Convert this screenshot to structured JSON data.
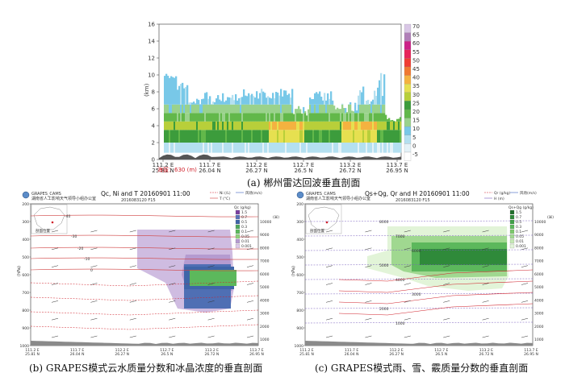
{
  "panel_a": {
    "caption": "(a) 郴州雷达回波垂直剖面",
    "y_unit": "(km)",
    "y_ticks": [
      "0",
      "2",
      "4",
      "6",
      "8",
      "10",
      "12",
      "14",
      "16"
    ],
    "x_ticks": [
      {
        "lon": "111.2 E",
        "lat": "25.81 N"
      },
      {
        "lon": "111.7 E",
        "lat": "26.04 N"
      },
      {
        "lon": "112.2 E",
        "lat": "26.27 N"
      },
      {
        "lon": "112.7 E",
        "lat": "26.5 N"
      },
      {
        "lon": "113.2 E",
        "lat": "26.72 N"
      },
      {
        "lon": "113.7 E",
        "lat": "26.95 N"
      }
    ],
    "altitude_note": "海拔：630 (m)",
    "colorbar_labels": [
      "70",
      "65",
      "60",
      "55",
      "50",
      "45",
      "40",
      "35",
      "30",
      "25",
      "20",
      "15",
      "10",
      "5",
      "0",
      "-5"
    ],
    "colorbar_colors": [
      "#d9c7e6",
      "#b07fb8",
      "#cc2288",
      "#e8245a",
      "#f03c32",
      "#f07830",
      "#f4b240",
      "#e6e050",
      "#b8cf3a",
      "#3c9c3c",
      "#62b84a",
      "#9ad28c",
      "#78c8e8",
      "#b4e0f0",
      "#e4f2f8",
      "#ffffff"
    ]
  },
  "panel_b": {
    "caption": "(b) GRAPES模式云水质量分数和冰晶浓度的垂直剖面",
    "header_left": "GRAPES_CAMS",
    "org": "湖南省人工影响天气领导小组办公室",
    "title": "Qc, Ni and T  20160901  11:00",
    "init_time": "2016083120 F15",
    "legend_ni": "Ni (/L)",
    "legend_wind": "风场(m/s)",
    "legend_t": "T (°C)",
    "legend_terrain": "地形",
    "colorbar_title": "Qc (g/kg)",
    "colorbar_labels": [
      "1.5",
      "0.7",
      "0.5",
      "0.3",
      "0.1",
      "0.05",
      "0.01",
      "0.001"
    ],
    "map_label": "剖面位置",
    "y_unit": "(hPa)",
    "h_unit": "(米)",
    "p_ticks": [
      "200",
      "300",
      "400",
      "500",
      "600",
      "700",
      "800",
      "900",
      "1000"
    ],
    "h_ticks": [
      "10000",
      "9000",
      "8000",
      "7000",
      "6000",
      "5000",
      "4000",
      "3000",
      "2000",
      "1000"
    ],
    "isotherms": [
      "-40",
      "-30",
      "-20",
      "-10",
      "0"
    ],
    "x_ticks": [
      {
        "lon": "111.2 E",
        "lat": "25.81 N"
      },
      {
        "lon": "111.7 E",
        "lat": "26.04 N"
      },
      {
        "lon": "112.2 E",
        "lat": "26.27 N"
      },
      {
        "lon": "112.7 E",
        "lat": "26.5 N"
      },
      {
        "lon": "113.2 E",
        "lat": "26.72 N"
      },
      {
        "lon": "113.7 E",
        "lat": "26.95 N"
      }
    ]
  },
  "panel_c": {
    "caption": "(c) GRAPES模式雨、雪、霰质量分数的垂直剖面",
    "header_left": "GRAPES_CAMS",
    "org": "湖南省人工影响天气领导小组办公室",
    "title": "Qs+Qg, Qr and H  20160901  11:00",
    "init_time": "2016083120 F15",
    "legend_q": "Qr (g/kg)",
    "legend_wind": "风场(m/s)",
    "legend_h": "H (m)",
    "legend_terrain": "地形",
    "colorbar_title": "Qs+Qg (g/kg)",
    "colorbar_labels": [
      "1.5",
      "0.7",
      "0.5",
      "0.3",
      "0.1",
      "0.05",
      "0.01",
      "0.001"
    ],
    "map_label": "剖面位置",
    "y_unit": "(hPa)",
    "h_unit": "(米)",
    "p_ticks": [
      "200",
      "300",
      "400",
      "500",
      "600",
      "700",
      "800",
      "900",
      "1000"
    ],
    "h_ticks": [
      "10000",
      "9000",
      "8000",
      "7000",
      "6000",
      "5000",
      "4000",
      "3000",
      "2000",
      "1000"
    ],
    "height_lines": [
      "8000",
      "7000",
      "6000",
      "5000",
      "4000",
      "3000",
      "2000",
      "1000"
    ],
    "x_ticks": [
      {
        "lon": "111.2 E",
        "lat": "25.81 N"
      },
      {
        "lon": "111.7 E",
        "lat": "26.04 N"
      },
      {
        "lon": "112.2 E",
        "lat": "26.27 N"
      },
      {
        "lon": "112.7 E",
        "lat": "26.5 N"
      },
      {
        "lon": "113.2 E",
        "lat": "26.72 N"
      },
      {
        "lon": "113.7 E",
        "lat": "26.95 N"
      }
    ]
  }
}
